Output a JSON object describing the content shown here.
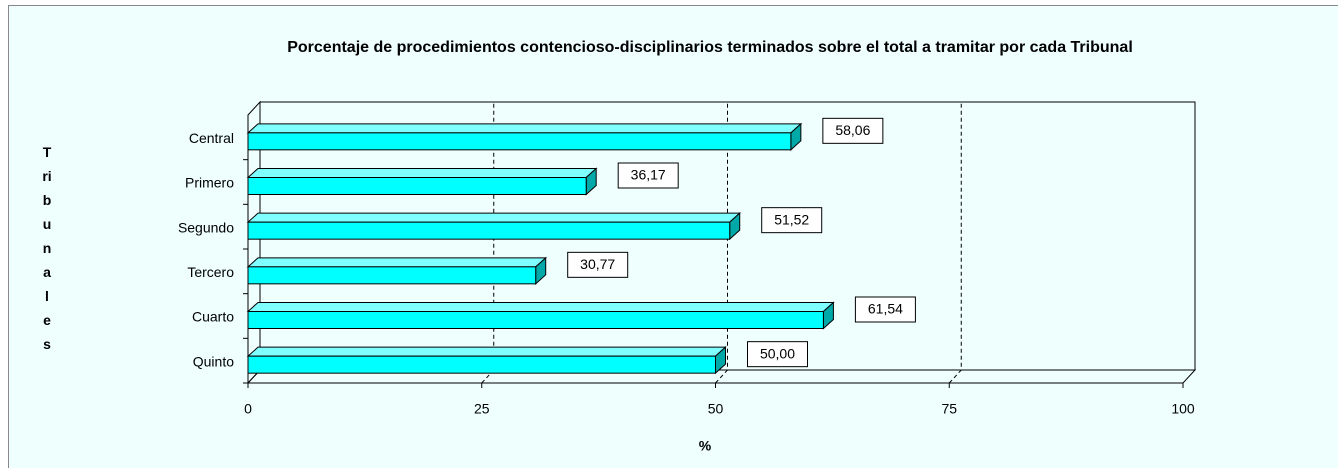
{
  "chart_data": {
    "type": "bar3d_horizontal",
    "title": "Porcentaje de procedimientos contencioso-disciplinarios terminados sobre el total a tramitar por cada Tribunal",
    "x_label": "%",
    "y_label": "Tribunales",
    "categories": [
      "Central",
      "Primero",
      "Segundo",
      "Tercero",
      "Cuarto",
      "Quinto"
    ],
    "values": [
      58.06,
      36.17,
      51.52,
      30.77,
      61.54,
      50.0
    ],
    "value_labels": [
      "58,06",
      "36,17",
      "51,52",
      "30,77",
      "61,54",
      "50,00"
    ],
    "color": "#00ffff",
    "xlim": [
      0,
      100
    ],
    "xticks": [
      0,
      25,
      50,
      75,
      100
    ],
    "grid": true
  }
}
